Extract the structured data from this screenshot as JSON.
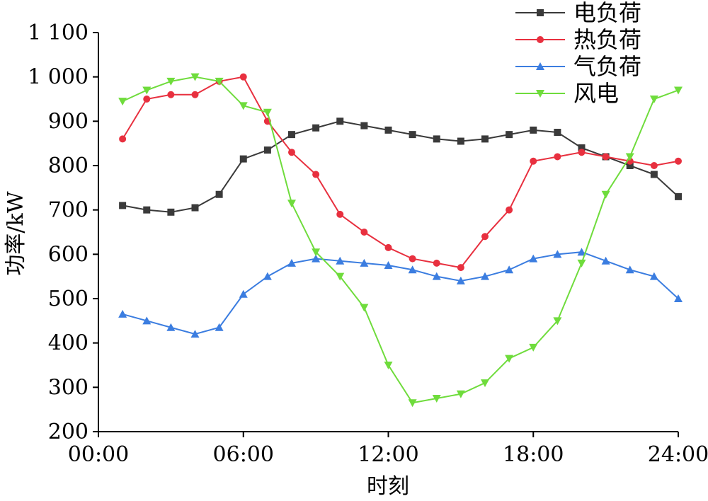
{
  "chart_data": {
    "type": "line",
    "xlabel": "时刻",
    "ylabel": "功率/kW",
    "ylim": [
      200,
      1100
    ],
    "xlim": [
      0,
      24
    ],
    "grid": false,
    "legend_position": "top-right",
    "x_ticks": [
      {
        "value": 0,
        "label": "00:00"
      },
      {
        "value": 6,
        "label": "06:00"
      },
      {
        "value": 12,
        "label": "12:00"
      },
      {
        "value": 18,
        "label": "18:00"
      },
      {
        "value": 24,
        "label": "24:00"
      }
    ],
    "y_ticks": [
      {
        "value": 200,
        "label": "200"
      },
      {
        "value": 300,
        "label": "300"
      },
      {
        "value": 400,
        "label": "400"
      },
      {
        "value": 500,
        "label": "500"
      },
      {
        "value": 600,
        "label": "600"
      },
      {
        "value": 700,
        "label": "700"
      },
      {
        "value": 800,
        "label": "800"
      },
      {
        "value": 900,
        "label": "900"
      },
      {
        "value": 1000,
        "label": "1 000"
      },
      {
        "value": 1100,
        "label": "1 100"
      }
    ],
    "x": [
      1,
      2,
      3,
      4,
      5,
      6,
      7,
      8,
      9,
      10,
      11,
      12,
      13,
      14,
      15,
      16,
      17,
      18,
      19,
      20,
      21,
      22,
      23,
      24
    ],
    "series": [
      {
        "name": "电负荷",
        "color": "#3a3a3a",
        "marker": "square",
        "values": [
          710,
          700,
          695,
          705,
          735,
          815,
          835,
          870,
          885,
          900,
          890,
          880,
          870,
          860,
          855,
          860,
          870,
          880,
          875,
          840,
          820,
          800,
          780,
          730
        ]
      },
      {
        "name": "热负荷",
        "color": "#e8303f",
        "marker": "circle",
        "values": [
          860,
          950,
          960,
          960,
          990,
          1000,
          900,
          830,
          780,
          690,
          650,
          615,
          590,
          580,
          570,
          640,
          700,
          810,
          820,
          830,
          820,
          810,
          800,
          810
        ]
      },
      {
        "name": "气负荷",
        "color": "#3b7de0",
        "marker": "triangle-up",
        "values": [
          465,
          450,
          435,
          420,
          435,
          510,
          550,
          580,
          590,
          585,
          580,
          575,
          565,
          550,
          540,
          550,
          565,
          590,
          600,
          605,
          585,
          565,
          550,
          500
        ]
      },
      {
        "name": "风电",
        "color": "#6fdc3c",
        "marker": "triangle-down",
        "values": [
          945,
          970,
          990,
          1000,
          990,
          935,
          920,
          715,
          605,
          550,
          480,
          350,
          265,
          275,
          285,
          310,
          365,
          390,
          450,
          580,
          735,
          820,
          950,
          970
        ]
      }
    ]
  }
}
